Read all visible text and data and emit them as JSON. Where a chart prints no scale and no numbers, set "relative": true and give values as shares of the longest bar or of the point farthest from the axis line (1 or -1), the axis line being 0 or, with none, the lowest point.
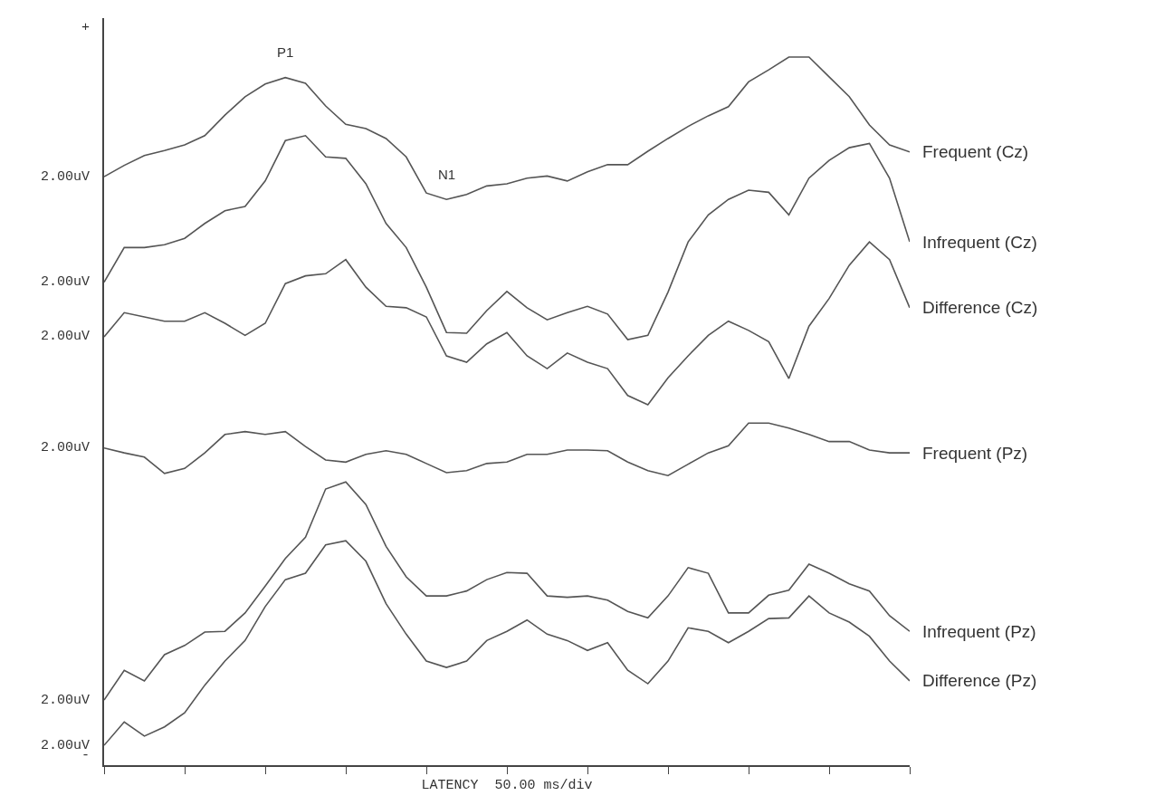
{
  "chart_data": {
    "type": "line",
    "relative": true,
    "xlabel": "LATENCY  50.00 ms/div",
    "categories": [
      null,
      null,
      null,
      null,
      null,
      null,
      null,
      null,
      null,
      null,
      null,
      null,
      null,
      null,
      null,
      null,
      null,
      null,
      null,
      null,
      null,
      null,
      null,
      null,
      null,
      null,
      null,
      null,
      null,
      null,
      null,
      null,
      null,
      null,
      null,
      null,
      null,
      null,
      null,
      null,
      null
    ],
    "series": [
      {
        "name": "Frequent (Cz)",
        "color": "#555555",
        "values": [
          0.831,
          0.847,
          0.861,
          0.868,
          0.876,
          0.889,
          0.918,
          0.944,
          0.962,
          0.971,
          0.963,
          0.931,
          0.905,
          0.899,
          0.885,
          0.859,
          0.808,
          0.799,
          0.806,
          0.818,
          0.821,
          0.829,
          0.832,
          0.825,
          0.838,
          0.848,
          0.848,
          0.867,
          0.885,
          0.902,
          0.917,
          0.93,
          0.965,
          0.982,
          1.0,
          1.0,
          0.972,
          0.944,
          0.904,
          0.876,
          0.866
        ]
      },
      {
        "name": "Infrequent (Cz)",
        "color": "#555555",
        "values": [
          0.682,
          0.731,
          0.731,
          0.735,
          0.744,
          0.765,
          0.783,
          0.789,
          0.825,
          0.882,
          0.889,
          0.859,
          0.857,
          0.821,
          0.765,
          0.731,
          0.675,
          0.611,
          0.61,
          0.642,
          0.669,
          0.646,
          0.629,
          0.639,
          0.648,
          0.637,
          0.601,
          0.607,
          0.668,
          0.739,
          0.777,
          0.799,
          0.812,
          0.809,
          0.777,
          0.829,
          0.854,
          0.872,
          0.878,
          0.829,
          0.739
        ]
      },
      {
        "name": "Difference (Cz)",
        "color": "#555555",
        "values": [
          0.605,
          0.639,
          0.633,
          0.627,
          0.627,
          0.639,
          0.624,
          0.607,
          0.624,
          0.68,
          0.691,
          0.694,
          0.714,
          0.675,
          0.648,
          0.646,
          0.633,
          0.578,
          0.569,
          0.595,
          0.611,
          0.578,
          0.56,
          0.582,
          0.569,
          0.56,
          0.522,
          0.509,
          0.547,
          0.578,
          0.607,
          0.627,
          0.614,
          0.598,
          0.546,
          0.62,
          0.659,
          0.706,
          0.739,
          0.714,
          0.646
        ]
      },
      {
        "name": "Frequent (Pz)",
        "color": "#555555",
        "values": [
          0.448,
          0.441,
          0.435,
          0.412,
          0.419,
          0.441,
          0.467,
          0.471,
          0.467,
          0.471,
          0.45,
          0.431,
          0.428,
          0.439,
          0.444,
          0.439,
          0.426,
          0.413,
          0.416,
          0.426,
          0.428,
          0.439,
          0.439,
          0.445,
          0.445,
          0.444,
          0.428,
          0.416,
          0.409,
          0.425,
          0.441,
          0.451,
          0.483,
          0.483,
          0.476,
          0.467,
          0.457,
          0.457,
          0.445,
          0.441,
          0.441
        ]
      },
      {
        "name": "Infrequent (Pz)",
        "color": "#555555",
        "values": [
          0.092,
          0.134,
          0.119,
          0.156,
          0.169,
          0.188,
          0.189,
          0.215,
          0.253,
          0.292,
          0.322,
          0.39,
          0.4,
          0.368,
          0.309,
          0.266,
          0.239,
          0.239,
          0.246,
          0.262,
          0.272,
          0.271,
          0.239,
          0.237,
          0.239,
          0.233,
          0.217,
          0.208,
          0.239,
          0.279,
          0.271,
          0.215,
          0.215,
          0.24,
          0.247,
          0.284,
          0.271,
          0.256,
          0.246,
          0.211,
          0.189
        ]
      },
      {
        "name": "Difference (Pz)",
        "color": "#555555",
        "values": [
          0.028,
          0.061,
          0.041,
          0.054,
          0.074,
          0.113,
          0.147,
          0.176,
          0.224,
          0.262,
          0.271,
          0.311,
          0.317,
          0.288,
          0.228,
          0.185,
          0.147,
          0.138,
          0.147,
          0.176,
          0.189,
          0.205,
          0.185,
          0.176,
          0.162,
          0.173,
          0.134,
          0.115,
          0.147,
          0.194,
          0.189,
          0.173,
          0.189,
          0.207,
          0.208,
          0.239,
          0.215,
          0.202,
          0.182,
          0.147,
          0.119
        ]
      }
    ],
    "annotations": [
      "+",
      "2.00uV",
      "2.00uV",
      "2.00uV",
      "2.00uV",
      "2.00uV",
      "2.00uV",
      "-",
      "P1",
      "N1"
    ]
  }
}
